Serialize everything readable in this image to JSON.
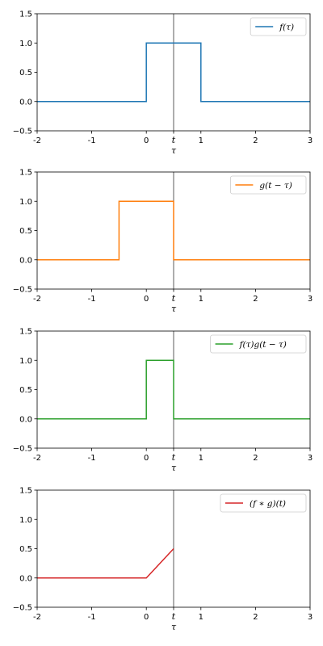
{
  "chart_data": [
    {
      "type": "line",
      "xlabel": "τ",
      "xlim": [
        -2,
        3
      ],
      "ylim": [
        -0.5,
        1.5
      ],
      "xticks": [
        {
          "v": -2,
          "label": "-2"
        },
        {
          "v": -1,
          "label": "-1"
        },
        {
          "v": 0,
          "label": "0"
        },
        {
          "v": 0.5,
          "label": "t"
        },
        {
          "v": 1,
          "label": "1"
        },
        {
          "v": 2,
          "label": "2"
        },
        {
          "v": 3,
          "label": "3"
        }
      ],
      "yticks": [
        {
          "v": -0.5,
          "label": "−0.5"
        },
        {
          "v": 0,
          "label": "0.0"
        },
        {
          "v": 0.5,
          "label": "0.5"
        },
        {
          "v": 1,
          "label": "1.0"
        },
        {
          "v": 1.5,
          "label": "1.5"
        }
      ],
      "vline_x": 0.5,
      "legend_position": "upper right",
      "series": [
        {
          "name": "f(τ)",
          "color": "#1f77b4",
          "x": [
            -2,
            0,
            0,
            1,
            1,
            3
          ],
          "y": [
            0,
            0,
            1,
            1,
            0,
            0
          ]
        }
      ]
    },
    {
      "type": "line",
      "xlabel": "τ",
      "xlim": [
        -2,
        3
      ],
      "ylim": [
        -0.5,
        1.5
      ],
      "xticks": [
        {
          "v": -2,
          "label": "-2"
        },
        {
          "v": -1,
          "label": "-1"
        },
        {
          "v": 0,
          "label": "0"
        },
        {
          "v": 0.5,
          "label": "t"
        },
        {
          "v": 1,
          "label": "1"
        },
        {
          "v": 2,
          "label": "2"
        },
        {
          "v": 3,
          "label": "3"
        }
      ],
      "yticks": [
        {
          "v": -0.5,
          "label": "−0.5"
        },
        {
          "v": 0,
          "label": "0.0"
        },
        {
          "v": 0.5,
          "label": "0.5"
        },
        {
          "v": 1,
          "label": "1.0"
        },
        {
          "v": 1.5,
          "label": "1.5"
        }
      ],
      "vline_x": 0.5,
      "legend_position": "upper right",
      "series": [
        {
          "name": "g(t − τ)",
          "color": "#ff7f0e",
          "x": [
            -2,
            -0.5,
            -0.5,
            0.5,
            0.5,
            3
          ],
          "y": [
            0,
            0,
            1,
            1,
            0,
            0
          ]
        }
      ]
    },
    {
      "type": "line",
      "xlabel": "τ",
      "xlim": [
        -2,
        3
      ],
      "ylim": [
        -0.5,
        1.5
      ],
      "xticks": [
        {
          "v": -2,
          "label": "-2"
        },
        {
          "v": -1,
          "label": "-1"
        },
        {
          "v": 0,
          "label": "0"
        },
        {
          "v": 0.5,
          "label": "t"
        },
        {
          "v": 1,
          "label": "1"
        },
        {
          "v": 2,
          "label": "2"
        },
        {
          "v": 3,
          "label": "3"
        }
      ],
      "yticks": [
        {
          "v": -0.5,
          "label": "−0.5"
        },
        {
          "v": 0,
          "label": "0.0"
        },
        {
          "v": 0.5,
          "label": "0.5"
        },
        {
          "v": 1,
          "label": "1.0"
        },
        {
          "v": 1.5,
          "label": "1.5"
        }
      ],
      "vline_x": 0.5,
      "legend_position": "upper right",
      "series": [
        {
          "name": "f(τ)g(t − τ)",
          "color": "#2ca02c",
          "x": [
            -2,
            0,
            0,
            0.5,
            0.5,
            3
          ],
          "y": [
            0,
            0,
            1,
            1,
            0,
            0
          ]
        }
      ]
    },
    {
      "type": "line",
      "xlabel": "τ",
      "xlim": [
        -2,
        3
      ],
      "ylim": [
        -0.5,
        1.5
      ],
      "xticks": [
        {
          "v": -2,
          "label": "-2"
        },
        {
          "v": -1,
          "label": "-1"
        },
        {
          "v": 0,
          "label": "0"
        },
        {
          "v": 0.5,
          "label": "t"
        },
        {
          "v": 1,
          "label": "1"
        },
        {
          "v": 2,
          "label": "2"
        },
        {
          "v": 3,
          "label": "3"
        }
      ],
      "yticks": [
        {
          "v": -0.5,
          "label": "−0.5"
        },
        {
          "v": 0,
          "label": "0.0"
        },
        {
          "v": 0.5,
          "label": "0.5"
        },
        {
          "v": 1,
          "label": "1.0"
        },
        {
          "v": 1.5,
          "label": "1.5"
        }
      ],
      "vline_x": 0.5,
      "legend_position": "upper right",
      "series": [
        {
          "name": "(f ∗ g)(t)",
          "color": "#d62728",
          "x": [
            -2,
            0,
            0.5
          ],
          "y": [
            0,
            0,
            0.5
          ]
        }
      ]
    }
  ]
}
